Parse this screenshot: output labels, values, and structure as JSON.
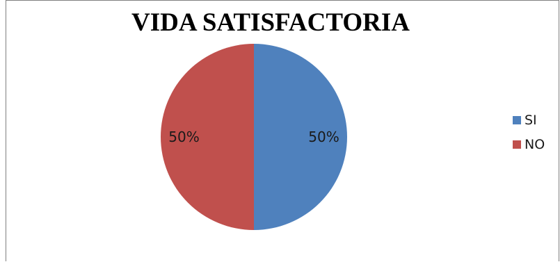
{
  "chart_data": {
    "type": "pie",
    "title": "VIDA SATISFACTORIA",
    "categories": [
      "SI",
      "NO"
    ],
    "values": [
      50,
      50
    ],
    "data_labels": [
      "50%",
      "50%"
    ],
    "colors": [
      "#4f81bd",
      "#c0504d"
    ],
    "legend_position": "right"
  }
}
